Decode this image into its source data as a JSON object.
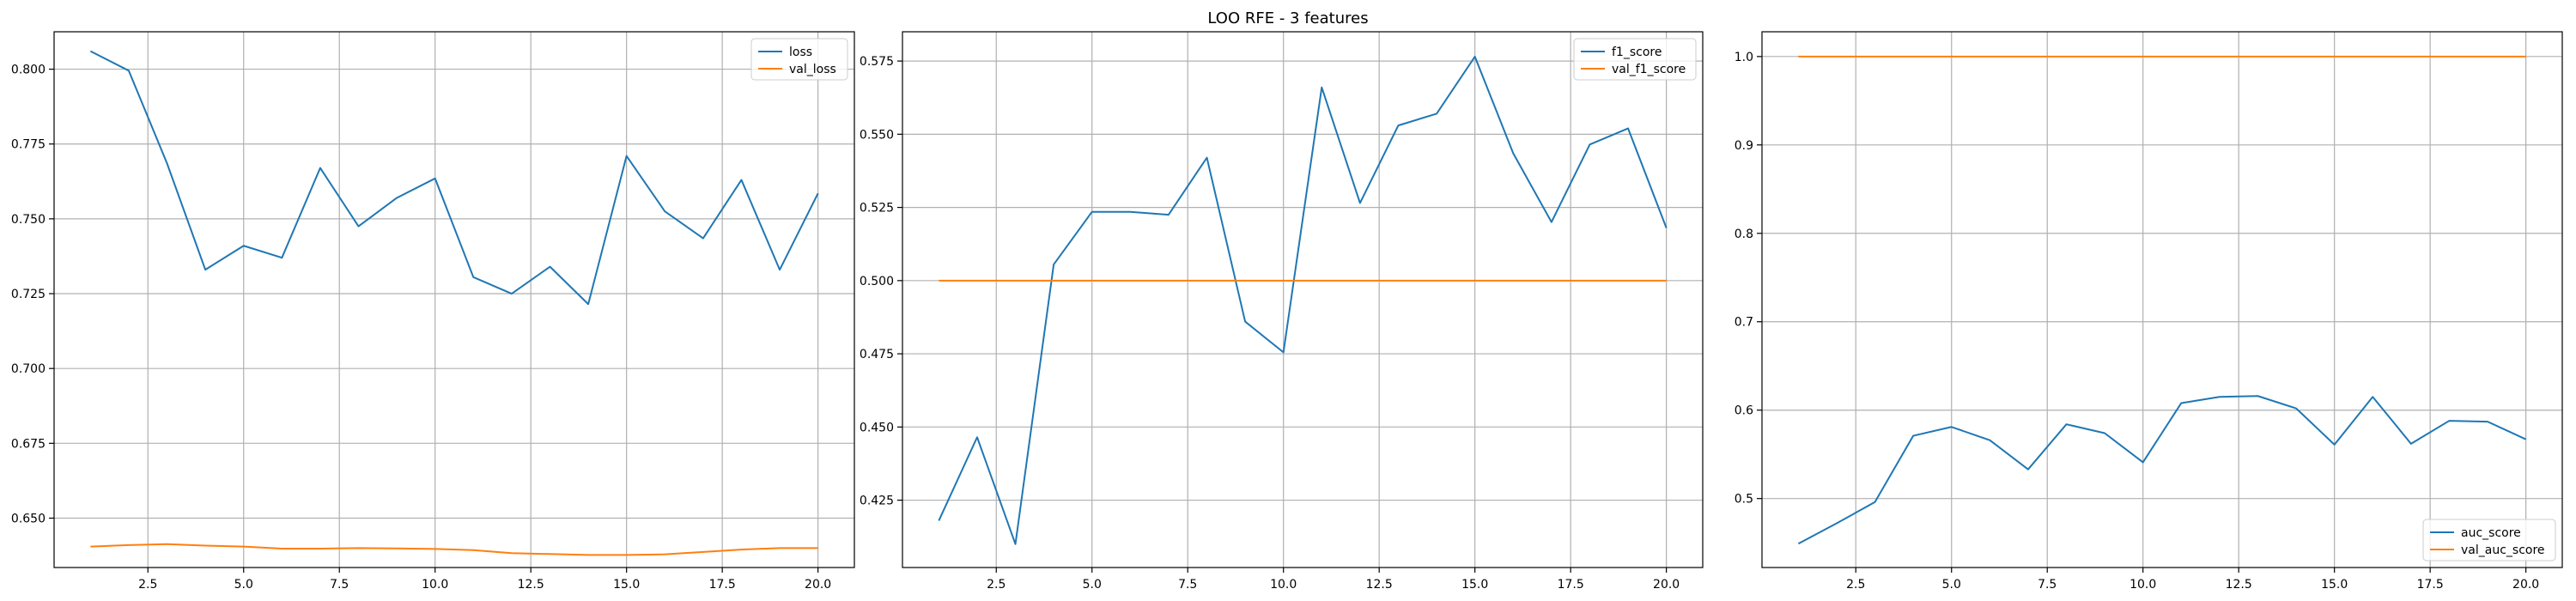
{
  "figure": {
    "title": "LOO RFE - 3 features"
  },
  "colors": {
    "series_1": "#1f77b4",
    "series_2": "#ff7f0e",
    "grid": "#b0b0b0",
    "axes": "#000000"
  },
  "chart_data": [
    {
      "type": "line",
      "title": "",
      "xlabel": "",
      "ylabel": "",
      "grid": true,
      "legend_position": "upper right",
      "xlim": [
        0.05,
        20.95
      ],
      "ylim": [
        0.6335,
        0.8125
      ],
      "x_ticks": [
        2.5,
        5.0,
        7.5,
        10.0,
        12.5,
        15.0,
        17.5,
        20.0
      ],
      "x_tick_labels": [
        "2.5",
        "5.0",
        "7.5",
        "10.0",
        "12.5",
        "15.0",
        "17.5",
        "20.0"
      ],
      "y_ticks": [
        0.65,
        0.675,
        0.7,
        0.725,
        0.75,
        0.775,
        0.8
      ],
      "y_tick_labels": [
        "0.650",
        "0.675",
        "0.700",
        "0.725",
        "0.750",
        "0.775",
        "0.800"
      ],
      "x": [
        1,
        2,
        3,
        4,
        5,
        6,
        7,
        8,
        9,
        10,
        11,
        12,
        13,
        14,
        15,
        16,
        17,
        18,
        19,
        20
      ],
      "series": [
        {
          "name": "loss",
          "color": "#1f77b4",
          "values": [
            0.806,
            0.7995,
            0.7685,
            0.733,
            0.741,
            0.737,
            0.767,
            0.7475,
            0.757,
            0.7635,
            0.7305,
            0.725,
            0.734,
            0.7215,
            0.771,
            0.7525,
            0.7435,
            0.763,
            0.733,
            0.7585
          ]
        },
        {
          "name": "val_loss",
          "color": "#ff7f0e",
          "values": [
            0.6405,
            0.641,
            0.6413,
            0.6408,
            0.6405,
            0.6398,
            0.6398,
            0.64,
            0.6399,
            0.6397,
            0.6393,
            0.6383,
            0.638,
            0.6377,
            0.6377,
            0.6379,
            0.6387,
            0.6395,
            0.64,
            0.64
          ]
        }
      ]
    },
    {
      "type": "line",
      "title": "",
      "xlabel": "",
      "ylabel": "",
      "grid": true,
      "legend_position": "upper right",
      "xlim": [
        0.05,
        20.95
      ],
      "ylim": [
        0.402,
        0.585
      ],
      "x_ticks": [
        2.5,
        5.0,
        7.5,
        10.0,
        12.5,
        15.0,
        17.5,
        20.0
      ],
      "x_tick_labels": [
        "2.5",
        "5.0",
        "7.5",
        "10.0",
        "12.5",
        "15.0",
        "17.5",
        "20.0"
      ],
      "y_ticks": [
        0.425,
        0.45,
        0.475,
        0.5,
        0.525,
        0.55,
        0.575
      ],
      "y_tick_labels": [
        "0.425",
        "0.450",
        "0.475",
        "0.500",
        "0.525",
        "0.550",
        "0.575"
      ],
      "x": [
        1,
        2,
        3,
        4,
        5,
        6,
        7,
        8,
        9,
        10,
        11,
        12,
        13,
        14,
        15,
        16,
        17,
        18,
        19,
        20
      ],
      "series": [
        {
          "name": "f1_score",
          "color": "#1f77b4",
          "values": [
            0.418,
            0.4465,
            0.41,
            0.5055,
            0.5235,
            0.5235,
            0.5225,
            0.542,
            0.486,
            0.4755,
            0.566,
            0.5265,
            0.553,
            0.557,
            0.5765,
            0.5435,
            0.52,
            0.5465,
            0.552,
            0.518
          ]
        },
        {
          "name": "val_f1_score",
          "color": "#ff7f0e",
          "values": [
            0.5,
            0.5,
            0.5,
            0.5,
            0.5,
            0.5,
            0.5,
            0.5,
            0.5,
            0.5,
            0.5,
            0.5,
            0.5,
            0.5,
            0.5,
            0.5,
            0.5,
            0.5,
            0.5,
            0.5
          ]
        }
      ]
    },
    {
      "type": "line",
      "title": "",
      "xlabel": "",
      "ylabel": "",
      "grid": true,
      "legend_position": "lower right",
      "xlim": [
        0.05,
        20.95
      ],
      "ylim": [
        0.422,
        1.028
      ],
      "x_ticks": [
        2.5,
        5.0,
        7.5,
        10.0,
        12.5,
        15.0,
        17.5,
        20.0
      ],
      "x_tick_labels": [
        "2.5",
        "5.0",
        "7.5",
        "10.0",
        "12.5",
        "15.0",
        "17.5",
        "20.0"
      ],
      "y_ticks": [
        0.5,
        0.6,
        0.7,
        0.8,
        0.9,
        1.0
      ],
      "y_tick_labels": [
        "0.5",
        "0.6",
        "0.7",
        "0.8",
        "0.9",
        "1.0"
      ],
      "x": [
        1,
        2,
        3,
        4,
        5,
        6,
        7,
        8,
        9,
        10,
        11,
        12,
        13,
        14,
        15,
        16,
        17,
        18,
        19,
        20
      ],
      "series": [
        {
          "name": "auc_score",
          "color": "#1f77b4",
          "values": [
            0.449,
            0.472,
            0.496,
            0.571,
            0.581,
            0.566,
            0.533,
            0.584,
            0.574,
            0.541,
            0.608,
            0.615,
            0.616,
            0.602,
            0.561,
            0.615,
            0.562,
            0.588,
            0.587,
            0.567
          ]
        },
        {
          "name": "val_auc_score",
          "color": "#ff7f0e",
          "values": [
            1.0,
            1.0,
            1.0,
            1.0,
            1.0,
            1.0,
            1.0,
            1.0,
            1.0,
            1.0,
            1.0,
            1.0,
            1.0,
            1.0,
            1.0,
            1.0,
            1.0,
            1.0,
            1.0,
            1.0
          ]
        }
      ]
    }
  ]
}
